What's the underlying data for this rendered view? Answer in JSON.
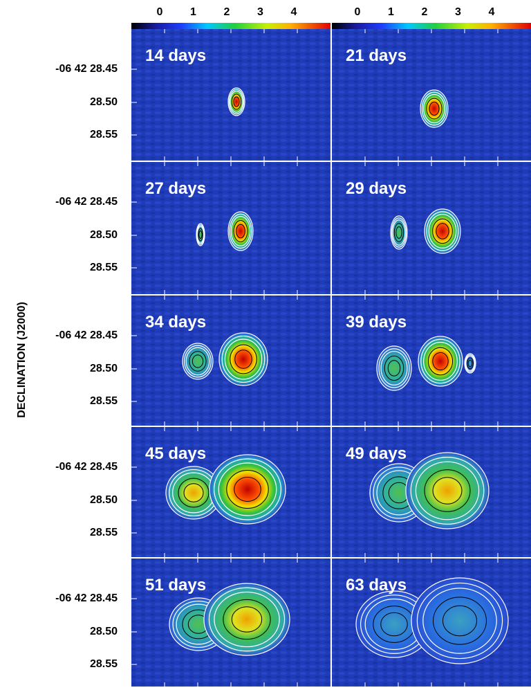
{
  "colorbar": {
    "ticks": [
      0,
      1,
      2,
      3,
      4
    ]
  },
  "y_axis": {
    "label": "DECLINATION (J2000)",
    "ticks": [
      "-06 42 28.45",
      "28.50",
      "28.55"
    ]
  },
  "panels": [
    {
      "label": "14 days"
    },
    {
      "label": "21 days"
    },
    {
      "label": "27 days"
    },
    {
      "label": "29 days"
    },
    {
      "label": "34 days"
    },
    {
      "label": "39 days"
    },
    {
      "label": "45 days"
    },
    {
      "label": "49 days"
    },
    {
      "label": "51 days"
    },
    {
      "label": "63 days"
    }
  ]
}
